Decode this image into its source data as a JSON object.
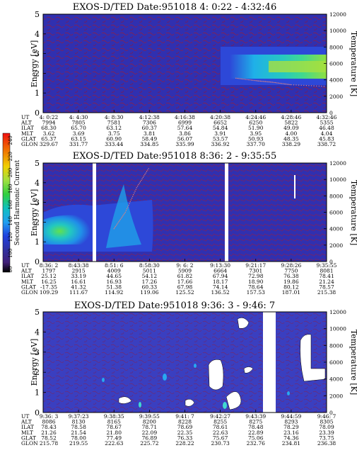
{
  "colorbar": {
    "label": "Second Harmonic Current",
    "ticks": [
      "240",
      "220",
      "200",
      "180",
      "160",
      "140",
      "120",
      "100",
      "80"
    ],
    "colors": [
      "#f01010",
      "#f07000",
      "#f0d000",
      "#d0e040",
      "#40e030",
      "#10c0c0",
      "#20a0f0",
      "#2040e0",
      "#3030a0",
      "#401e78",
      "#000000"
    ]
  },
  "panels": [
    {
      "id": "p1",
      "title": "EXOS-D/TED   Date:951018  4: 0:22 - 4:32:46",
      "ylabel": "Energy [eV]",
      "y2label": "Temperature [K]",
      "yticks": [
        "0",
        "1",
        "2",
        "3",
        "4",
        "5"
      ],
      "y2ticks": [
        "0",
        "2000",
        "4000",
        "6000",
        "8000",
        "10000",
        "12000"
      ],
      "rowLabels": [
        "UT",
        "ALT",
        "ILAT",
        "MLT",
        "GLAT",
        "GLON"
      ],
      "columns": [
        [
          "4: 0:22",
          "7994",
          "68.30",
          "3.62",
          "65.37",
          "329.67"
        ],
        [
          "4: 4:30",
          "7805",
          "65.70",
          "3.69",
          "63.15",
          "331.77"
        ],
        [
          "4: 8:30",
          "7581",
          "63.12",
          "3.75",
          "60.90",
          "333.44"
        ],
        [
          "4:12:38",
          "7306",
          "60.37",
          "3.81",
          "58.49",
          "334.85"
        ],
        [
          "4:16:38",
          "6999",
          "57.64",
          "3.86",
          "56.07",
          "335.99"
        ],
        [
          "4:20:38",
          "6652",
          "54.84",
          "3.91",
          "53.57",
          "336.92"
        ],
        [
          "4:24:46",
          "6250",
          "51.90",
          "3.95",
          "50.93",
          "337.70"
        ],
        [
          "4:28:46",
          "5822",
          "49.09",
          "4.00",
          "48.35",
          "338.29"
        ],
        [
          "4:32:46",
          "5355",
          "46.48",
          "4.04",
          "45.83",
          "338.72"
        ]
      ]
    },
    {
      "id": "p2",
      "title": "EXOS-D/TED   Date:951018  8:36: 2 - 9:35:55",
      "ylabel": "Energy [eV]",
      "y2label": "Temperature [K]",
      "yticks": [
        "0",
        "1",
        "2",
        "3",
        "4",
        "5"
      ],
      "y2ticks": [
        "0",
        "2000",
        "4000",
        "6000",
        "8000",
        "10000",
        "12000"
      ],
      "rowLabels": [
        "UT",
        "ALT",
        "ILAT",
        "MLT",
        "GLAT",
        "GLON"
      ],
      "columns": [
        [
          "8:36: 2",
          "1797",
          "25.12",
          "16.25",
          "-17.35",
          "109.29"
        ],
        [
          "8:43:38",
          "2915",
          "33.19",
          "16.61",
          "41.32",
          "111.67"
        ],
        [
          "8:51: 6",
          "4009",
          "44.65",
          "16.93",
          "51.38",
          "114.92"
        ],
        [
          "8:58:30",
          "5011",
          "54.12",
          "17.26",
          "60.33",
          "119.06"
        ],
        [
          "9: 6: 2",
          "5909",
          "61.82",
          "17.66",
          "67.98",
          "125.52"
        ],
        [
          "9:13:30",
          "6664",
          "67.94",
          "18.17",
          "74.14",
          "136.52"
        ],
        [
          "9:21:17",
          "7301",
          "72.98",
          "18.90",
          "78.64",
          "157.53"
        ],
        [
          "9:28:26",
          "7750",
          "76.38",
          "19.86",
          "80.12",
          "187.01"
        ],
        [
          "9:35:55",
          "8081",
          "78.41",
          "21.24",
          "78.57",
          "215.38"
        ]
      ]
    },
    {
      "id": "p3",
      "title": "EXOS-D/TED   Date:951018  9:36: 3 - 9:46: 7",
      "ylabel": "Energy [eV]",
      "y2label": "Temperature [K]",
      "yticks": [
        "0",
        "1",
        "2",
        "3",
        "4",
        "5"
      ],
      "y2ticks": [
        "0",
        "2000",
        "4000",
        "6000",
        "8000",
        "10000",
        "12000"
      ],
      "rowLabels": [
        "UT",
        "ALT",
        "ILAT",
        "MLT",
        "GLAT",
        "GLON"
      ],
      "columns": [
        [
          "9:36: 3",
          "8086",
          "78.43",
          "21.26",
          "78.52",
          "215.78"
        ],
        [
          "9:37:23",
          "8130",
          "78.58",
          "21.54",
          "78.00",
          "219.55"
        ],
        [
          "9:38:35",
          "8165",
          "78.67",
          "21.80",
          "77.49",
          "222.63"
        ],
        [
          "9:39:55",
          "8200",
          "78.71",
          "22.09",
          "76.89",
          "225.72"
        ],
        [
          "9:41: 7",
          "8228",
          "78.69",
          "22.35",
          "76.33",
          "228.22"
        ],
        [
          "9:42:27",
          "8255",
          "78.61",
          "22.63",
          "75.67",
          "230.73"
        ],
        [
          "9:43:39",
          "8275",
          "78.48",
          "22.89",
          "75.06",
          "232.76"
        ],
        [
          "9:44:59",
          "8293",
          "78.29",
          "23.16",
          "74.36",
          "234.81"
        ],
        [
          "9:46: 7",
          "8305",
          "78.09",
          "23.39",
          "73.75",
          "236.38"
        ]
      ]
    }
  ],
  "chart_data": [
    {
      "type": "heatmap",
      "title": "EXOS-D/TED   Date:951018  4: 0:22 - 4:32:46",
      "xlabel": "UT",
      "ylabel": "Energy [eV]",
      "y2label": "Temperature [K]",
      "ylim": [
        0,
        5
      ],
      "y2lim": [
        0,
        12000
      ],
      "colorbar_range": [
        80,
        240
      ],
      "x_ticks": [
        "4: 0:22",
        "4: 4:30",
        "4: 8:30",
        "4:12:38",
        "4:16:38",
        "4:20:38",
        "4:24:46",
        "4:28:46",
        "4:32:46"
      ],
      "temperature_trace_K": [
        4200,
        3900,
        3700,
        3400,
        3200
      ],
      "temperature_trace_x": [
        "4:22:00",
        "4:24:46",
        "4:26:46",
        "4:28:46",
        "4:32:46"
      ],
      "features": [
        {
          "x_range": [
            "4:20:38",
            "4:32:46"
          ],
          "energy_range_eV": [
            1.9,
            3.2
          ],
          "level": 140
        }
      ]
    },
    {
      "type": "heatmap",
      "title": "EXOS-D/TED   Date:951018  8:36: 2 - 9:35:55",
      "xlabel": "UT",
      "ylabel": "Energy [eV]",
      "y2label": "Temperature [K]",
      "ylim": [
        0,
        5
      ],
      "y2lim": [
        0,
        12000
      ],
      "colorbar_range": [
        80,
        240
      ],
      "x_ticks": [
        "8:36: 2",
        "8:43:38",
        "8:51: 6",
        "8:58:30",
        "9: 6: 2",
        "9:13:30",
        "9:21:17",
        "9:28:26",
        "9:35:55"
      ],
      "temperature_trace_K": [
        4000,
        6000,
        9000,
        11500
      ],
      "temperature_trace_x": [
        "8:51: 6",
        "8:53:00",
        "8:55:00",
        "8:58:30"
      ],
      "features": [
        {
          "x_range": [
            "8:36: 2",
            "8:58:30"
          ],
          "energy_range_eV": [
            0.3,
            3.0
          ],
          "level": 150
        }
      ]
    },
    {
      "type": "heatmap",
      "title": "EXOS-D/TED   Date:951018  9:36: 3 - 9:46: 7",
      "xlabel": "UT",
      "ylabel": "Energy [eV]",
      "y2label": "Temperature [K]",
      "ylim": [
        0,
        5
      ],
      "y2lim": [
        0,
        12000
      ],
      "colorbar_range": [
        80,
        240
      ],
      "x_ticks": [
        "9:36: 3",
        "9:37:23",
        "9:38:35",
        "9:39:55",
        "9:41: 7",
        "9:42:27",
        "9:43:39",
        "9:44:59",
        "9:46: 7"
      ],
      "features": [
        {
          "x_range": [
            "9:36: 3",
            "9:46: 7"
          ],
          "energy_range_eV": [
            0,
            5
          ],
          "level": 100
        }
      ]
    }
  ]
}
